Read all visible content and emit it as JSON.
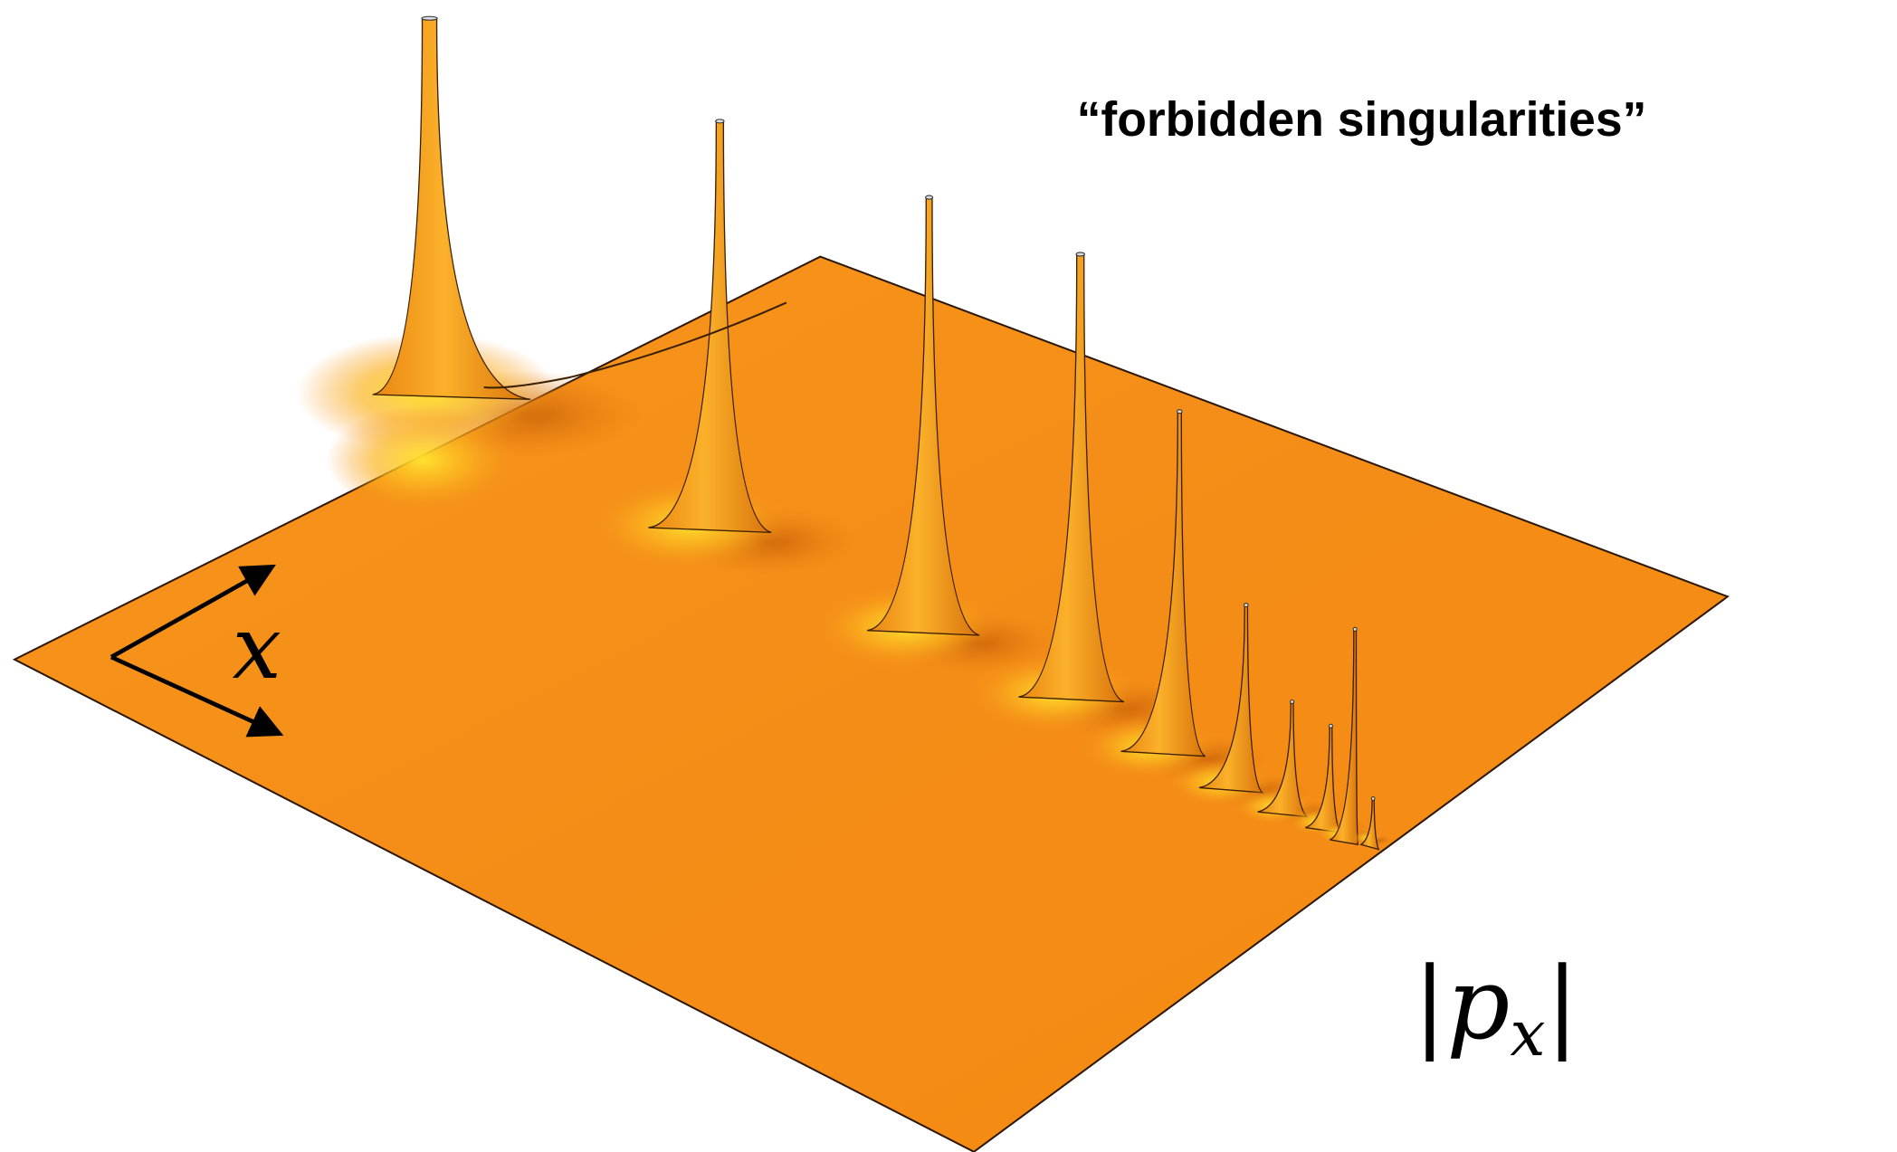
{
  "annotation": "“forbidden singularities”",
  "x_axis_label": "x",
  "p_axis_label": {
    "left_bar": "|",
    "symbol": "p",
    "subscript": "x",
    "right_bar": "|"
  }
}
